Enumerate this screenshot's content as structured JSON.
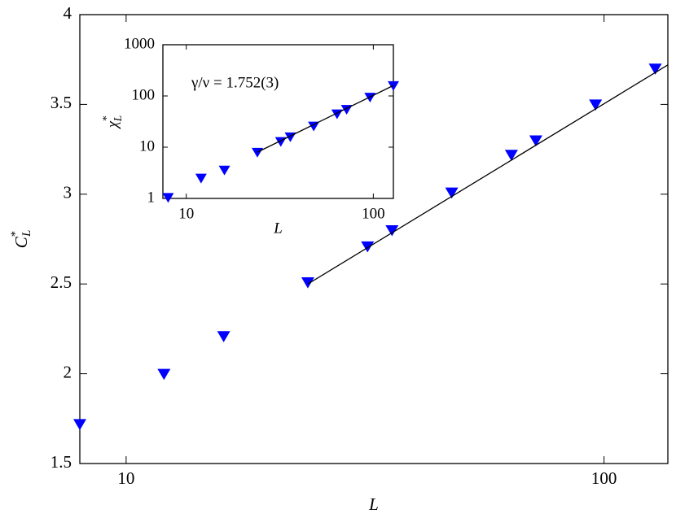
{
  "chart_data": [
    {
      "type": "scatter",
      "xscale": "log",
      "yscale": "linear",
      "xlabel": "L",
      "ylabel": {
        "base": "C",
        "sup": "*",
        "sub": "L"
      },
      "xlim": [
        8,
        136
      ],
      "xticks": [
        10,
        100
      ],
      "ylim": [
        1.5,
        4
      ],
      "yticks": [
        1.5,
        2,
        2.5,
        3,
        3.5,
        4
      ],
      "series": [
        {
          "color": "#0000ff",
          "marker": "triangle-down",
          "x": [
            8,
            12,
            16,
            24,
            32,
            36,
            48,
            64,
            72,
            96,
            128
          ],
          "values": [
            1.72,
            2.0,
            2.21,
            2.51,
            2.71,
            2.8,
            3.01,
            3.22,
            3.3,
            3.5,
            3.7
          ]
        },
        {
          "color": "#000000",
          "marker": "line",
          "x": [
            24,
            136
          ],
          "values": [
            2.5,
            3.72
          ]
        }
      ]
    },
    {
      "type": "scatter",
      "xscale": "log",
      "yscale": "log",
      "xlabel": "L",
      "ylabel": {
        "base": "χ",
        "sup": "*",
        "sub": "L"
      },
      "annotation": "γ/ν = 1.752(3)",
      "xlim": [
        7.5,
        128
      ],
      "xticks": [
        10,
        100
      ],
      "ylim": [
        1,
        1000
      ],
      "yticks": [
        1,
        10,
        100,
        1000
      ],
      "series": [
        {
          "color": "#0000ff",
          "marker": "triangle-down",
          "x": [
            8,
            12,
            16,
            24,
            32,
            36,
            48,
            64,
            72,
            96,
            128
          ],
          "values": [
            1.05,
            2.5,
            3.6,
            8,
            13,
            16,
            26,
            45,
            55,
            95,
            160
          ]
        },
        {
          "color": "#000000",
          "marker": "line",
          "x": [
            24,
            128
          ],
          "values": [
            8,
            160
          ]
        }
      ]
    }
  ]
}
